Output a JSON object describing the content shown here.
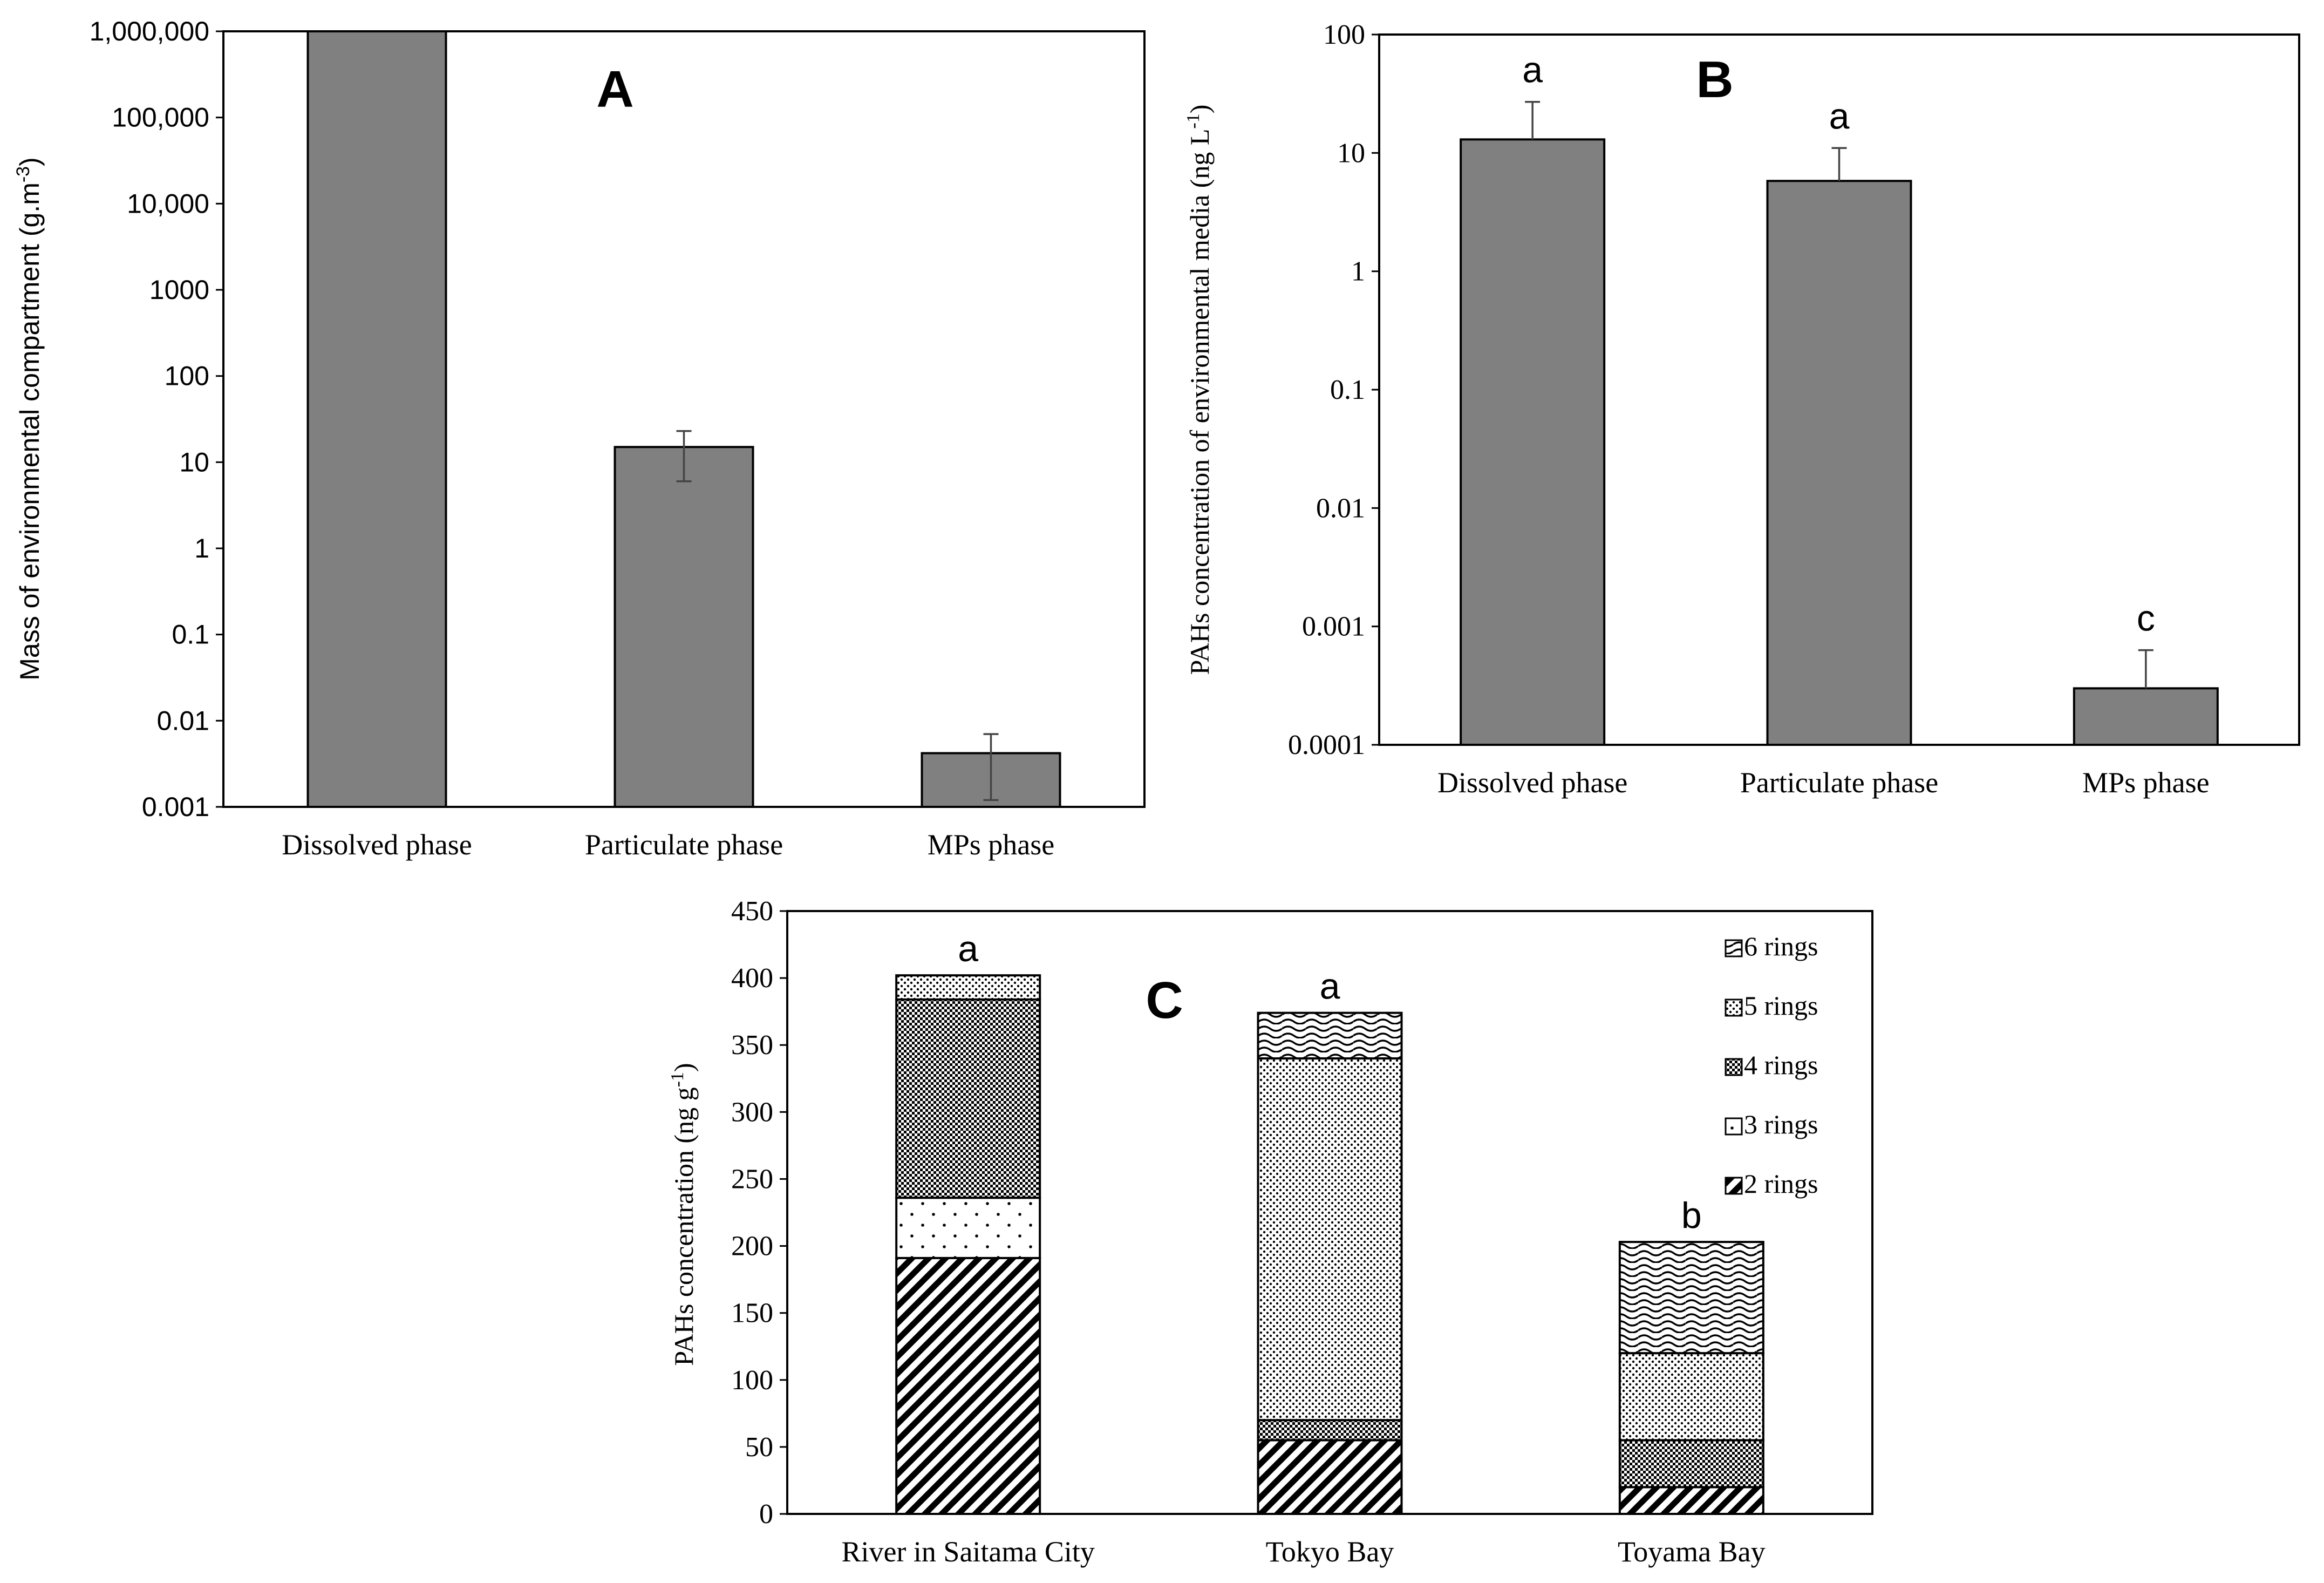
{
  "chart_data": [
    {
      "panel": "A",
      "type": "bar",
      "yscale": "log",
      "title": "",
      "xlabel": "",
      "ylabel": "Mass of environmental compartment (g.m",
      "ylabel_sup": "-3",
      "ylabel_end": ")",
      "ylim": [
        0.001,
        1000000
      ],
      "yticks": [
        {
          "v": 1000000,
          "label": "1,000,000"
        },
        {
          "v": 100000,
          "label": "100,000"
        },
        {
          "v": 10000,
          "label": "10,000"
        },
        {
          "v": 1000,
          "label": "1000"
        },
        {
          "v": 100,
          "label": "100"
        },
        {
          "v": 10,
          "label": "10"
        },
        {
          "v": 1,
          "label": "1"
        },
        {
          "v": 0.1,
          "label": "0.1"
        },
        {
          "v": 0.01,
          "label": "0.01"
        },
        {
          "v": 0.001,
          "label": "0.001"
        }
      ],
      "categories": [
        "Dissolved phase",
        "Particulate phase",
        "MPs phase"
      ],
      "values": [
        1000000,
        15,
        0.0042
      ],
      "errors_upper": [
        1000000,
        23,
        0.007
      ],
      "errors_lower": [
        1000000,
        6,
        0.0012
      ],
      "letters": [
        "",
        "",
        ""
      ],
      "color": "#808080"
    },
    {
      "panel": "B",
      "type": "bar",
      "yscale": "log",
      "title": "",
      "xlabel": "",
      "ylabel": "PAHs concentration of environmental media (ng L",
      "ylabel_sup": "-1",
      "ylabel_end": ")",
      "ylim": [
        0.0001,
        100
      ],
      "yticks": [
        {
          "v": 100,
          "label": "100"
        },
        {
          "v": 10,
          "label": "10"
        },
        {
          "v": 1,
          "label": "1"
        },
        {
          "v": 0.1,
          "label": "0.1"
        },
        {
          "v": 0.01,
          "label": "0.01"
        },
        {
          "v": 0.001,
          "label": "0.001"
        },
        {
          "v": 0.0001,
          "label": "0.0001"
        }
      ],
      "categories": [
        "Dissolved phase",
        "Particulate phase",
        "MPs phase"
      ],
      "values": [
        13,
        5.8,
        0.0003
      ],
      "errors_upper": [
        27,
        11,
        0.00063
      ],
      "errors_lower": [
        13,
        5.8,
        0.0003
      ],
      "letters": [
        "a",
        "a",
        "c"
      ],
      "color": "#808080"
    },
    {
      "panel": "C",
      "type": "bar",
      "stacked": true,
      "title": "",
      "xlabel": "",
      "ylabel": "PAHs concentration (ng g",
      "ylabel_sup": "-1",
      "ylabel_end": ")",
      "ylim": [
        0,
        450
      ],
      "yticks": [
        0,
        50,
        100,
        150,
        200,
        250,
        300,
        350,
        400,
        450
      ],
      "categories": [
        "River in Saitama City",
        "Tokyo Bay",
        "Toyama Bay"
      ],
      "series": [
        {
          "name": "2 rings",
          "values": [
            191,
            55,
            20
          ]
        },
        {
          "name": "3 rings",
          "values": [
            45,
            0,
            0
          ]
        },
        {
          "name": "4 rings",
          "values": [
            148,
            15,
            35
          ]
        },
        {
          "name": "5 rings",
          "values": [
            18,
            270,
            65
          ]
        },
        {
          "name": "6 rings",
          "values": [
            0,
            34,
            83
          ]
        }
      ],
      "letters": [
        "a",
        "a",
        "b"
      ],
      "legend_position": "top-right"
    }
  ]
}
